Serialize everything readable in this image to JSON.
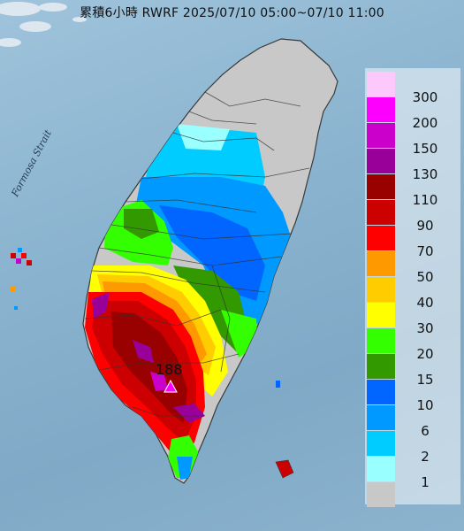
{
  "title": "累積6小時 RWRF 2025/07/10 05:00~07/10 11:00",
  "strait_label": "Formosa Strait",
  "max_value": "188",
  "legend": [
    {
      "label": "300",
      "color": "#fdc9fd"
    },
    {
      "label": "200",
      "color": "#fd00fd"
    },
    {
      "label": "150",
      "color": "#cb00cb"
    },
    {
      "label": "130",
      "color": "#990099"
    },
    {
      "label": "110",
      "color": "#990000"
    },
    {
      "label": "90",
      "color": "#cc0000"
    },
    {
      "label": "70",
      "color": "#ff0000"
    },
    {
      "label": "50",
      "color": "#ff9900"
    },
    {
      "label": "40",
      "color": "#ffcc00"
    },
    {
      "label": "30",
      "color": "#ffff00"
    },
    {
      "label": "20",
      "color": "#33ff00"
    },
    {
      "label": "15",
      "color": "#339900"
    },
    {
      "label": "10",
      "color": "#0066ff"
    },
    {
      "label": "6",
      "color": "#0099ff"
    },
    {
      "label": "2",
      "color": "#00ccff"
    },
    {
      "label": "1",
      "color": "#99ffff"
    },
    {
      "label": "",
      "color": "#c8c8c8"
    }
  ]
}
